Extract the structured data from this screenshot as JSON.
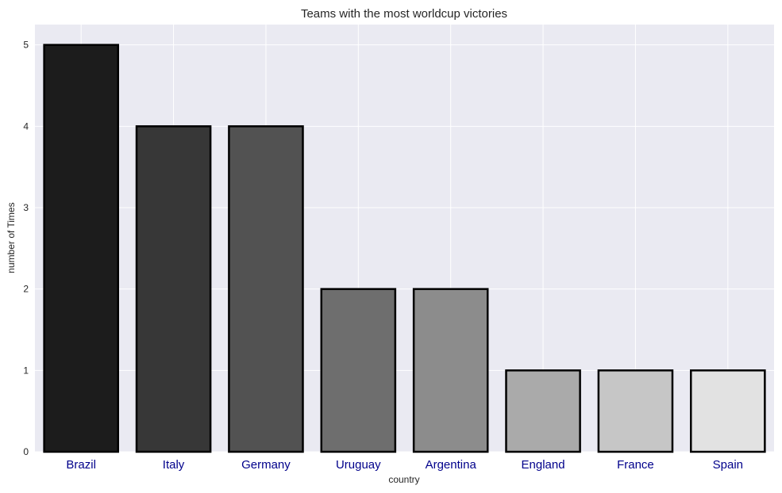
{
  "chart_data": {
    "type": "bar",
    "title": "Teams with the most worldcup victories",
    "xlabel": "country",
    "ylabel": "number of Times",
    "categories": [
      "Brazil",
      "Italy",
      "Germany",
      "Uruguay",
      "Argentina",
      "England",
      "France",
      "Spain"
    ],
    "values": [
      5,
      4,
      4,
      2,
      2,
      1,
      1,
      1
    ],
    "ylim": [
      0,
      5.25
    ],
    "yticks": [
      "0",
      "1",
      "2",
      "3",
      "4",
      "5"
    ],
    "grid": true,
    "colors": {
      "plot_background": "#eaeaf2",
      "grid": "#ffffff",
      "bar_edge": "#000000",
      "xtick_label": "#00008b",
      "bars": [
        "#1c1c1c",
        "#373737",
        "#525252",
        "#6e6e6e",
        "#8c8c8c",
        "#aaaaaa",
        "#c6c6c6",
        "#e2e2e2"
      ]
    }
  }
}
